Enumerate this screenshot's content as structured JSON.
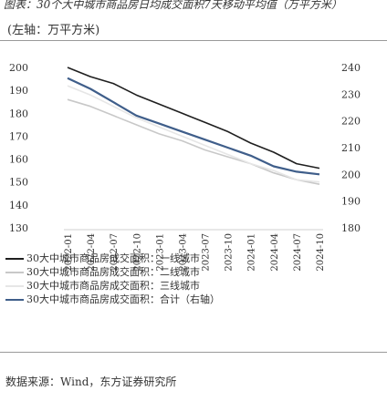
{
  "title": "图表：30个大中城市商品房日均成交面积7天移动平均值（万平方米）",
  "unit_label": "(左轴：万平方米)",
  "source": "数据来源：Wind，东方证券研究所",
  "chart_data": {
    "type": "line",
    "x": [
      "2022-01",
      "2022-04",
      "2022-07",
      "2022-10",
      "2023-01",
      "2023-04",
      "2023-07",
      "2023-10",
      "2024-01",
      "2024-04",
      "2024-07",
      "2024-10"
    ],
    "left_axis": {
      "ticks": [
        130,
        140,
        150,
        160,
        170,
        180,
        190,
        200
      ],
      "ylim": [
        130,
        200
      ]
    },
    "right_axis": {
      "ticks": [
        180,
        190,
        200,
        210,
        220,
        230,
        240
      ],
      "ylim": [
        180,
        240
      ]
    },
    "series": [
      {
        "name": "30大中城市商品房成交面积：一线城市",
        "color": "#1f1f1f",
        "axis": "left",
        "values": [
          200,
          196,
          193,
          188,
          184,
          180,
          176,
          172,
          167,
          163,
          158,
          156
        ]
      },
      {
        "name": "30大中城市商品房成交面积：二线城市",
        "color": "#c8c8c8",
        "axis": "left",
        "values": [
          186,
          183,
          179,
          175,
          171,
          168,
          164,
          161,
          158,
          154,
          151,
          149
        ]
      },
      {
        "name": "30大中城市商品房成交面积：三线城市",
        "color": "#e6e6e6",
        "axis": "left",
        "values": [
          192,
          188,
          183,
          178,
          174,
          170,
          166,
          162,
          158,
          155,
          151,
          150
        ]
      },
      {
        "name": "30大中城市商品房成交面积：合计（右轴）",
        "color": "#3f5e8a",
        "axis": "right",
        "values": [
          236,
          232,
          227,
          222,
          219,
          216,
          213,
          210,
          207,
          203,
          201,
          200
        ]
      }
    ]
  }
}
